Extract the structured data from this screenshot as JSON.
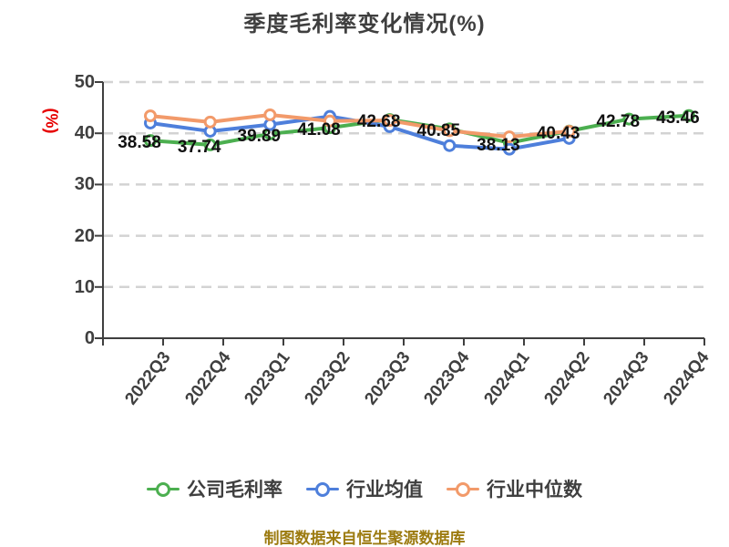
{
  "title": "季度毛利率变化情况(%)",
  "footer": {
    "text": "制图数据来自恒生聚源数据库"
  },
  "chart_data": {
    "type": "line",
    "title": "季度毛利率变化情况(%)",
    "y_unit": "(%)",
    "xlabel": "",
    "ylabel": "(%)",
    "ylim": [
      0,
      50
    ],
    "y_ticks": [
      0,
      10,
      20,
      30,
      40,
      50
    ],
    "grid": "dashed-horizontal",
    "legend_position": "bottom",
    "categories": [
      "2022Q3",
      "2022Q4",
      "2023Q1",
      "2023Q2",
      "2023Q3",
      "2023Q4",
      "2024Q1",
      "2024Q2",
      "2024Q3",
      "2024Q4"
    ],
    "series": [
      {
        "name": "公司毛利率",
        "color": "#4caf50",
        "values": [
          38.58,
          37.74,
          39.89,
          41.08,
          42.68,
          40.85,
          38.13,
          40.43,
          42.78,
          43.46
        ],
        "labels": [
          "38.58",
          "37.74",
          "39.89",
          "41.08",
          "42.68",
          "40.85",
          "38.13",
          "40.43",
          "42.78",
          "43.46"
        ]
      },
      {
        "name": "行业均值",
        "color": "#4e7fdb",
        "values": [
          42.0,
          40.4,
          41.7,
          43.3,
          41.3,
          37.6,
          36.9,
          39.0,
          null,
          null
        ],
        "labels": []
      },
      {
        "name": "行业中位数",
        "color": "#f29a6a",
        "values": [
          43.4,
          42.2,
          43.6,
          42.4,
          42.5,
          40.5,
          39.3,
          40.4,
          null,
          null
        ],
        "labels": []
      }
    ],
    "colors": {
      "grid": "#d3d3d3",
      "axis": "#3f3f3f",
      "tick_text": "#3f3f3f",
      "data_label_text": "#111111",
      "title_text": "#3f3f3f",
      "y_unit_text": "#e60000",
      "footer_text": "#9c7b10",
      "marker_fill": "#ffffff"
    }
  }
}
